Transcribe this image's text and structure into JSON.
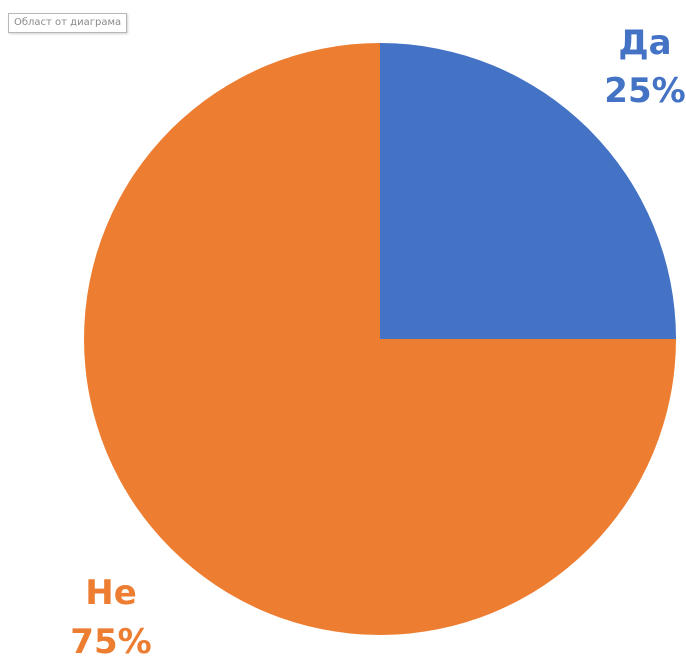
{
  "tooltip": {
    "text": "Област от диаграма"
  },
  "chart_data": {
    "type": "pie",
    "start_angle_deg": 0,
    "direction": "clockwise",
    "slices": [
      {
        "category": "Да",
        "value": 25,
        "label": "25%",
        "color": "#4472C4"
      },
      {
        "category": "Не",
        "value": 75,
        "label": "75%",
        "color": "#ED7D31"
      }
    ]
  }
}
